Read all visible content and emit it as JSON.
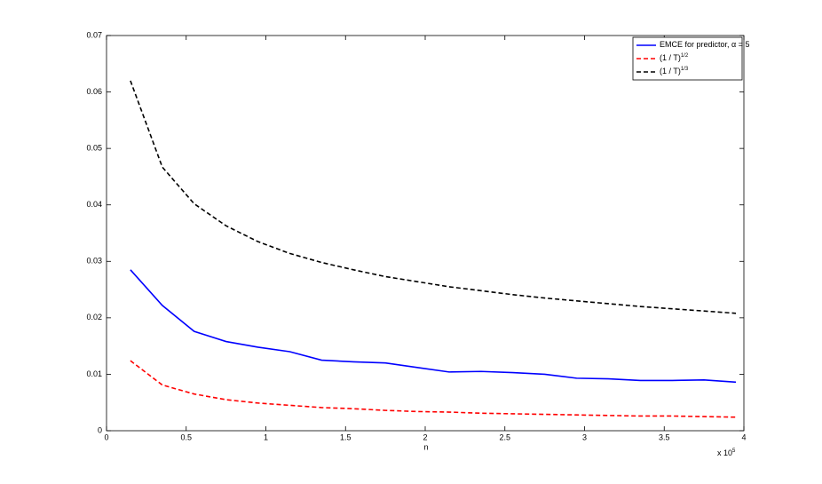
{
  "chart_data": {
    "type": "line",
    "x": [
      0.15,
      0.35,
      0.55,
      0.75,
      0.95,
      1.15,
      1.35,
      1.55,
      1.75,
      1.95,
      2.15,
      2.35,
      2.55,
      2.75,
      2.95,
      3.15,
      3.35,
      3.55,
      3.75,
      3.95
    ],
    "series": [
      {
        "name": "EMCE for predictor, α = 5",
        "color": "#0000ff",
        "dash": false,
        "values": [
          0.0285,
          0.0222,
          0.0176,
          0.0158,
          0.0148,
          0.014,
          0.0125,
          0.0122,
          0.012,
          0.0112,
          0.0104,
          0.0105,
          0.0103,
          0.01,
          0.0093,
          0.0092,
          0.0089,
          0.0089,
          0.009,
          0.0086
        ]
      },
      {
        "name": "(1 / T)",
        "name_superscript": "1/2",
        "color": "#ff0000",
        "dash": true,
        "values": [
          0.0124,
          0.0081,
          0.0065,
          0.0055,
          0.0049,
          0.0045,
          0.0041,
          0.0039,
          0.0036,
          0.0034,
          0.0033,
          0.0031,
          0.003,
          0.0029,
          0.0028,
          0.0027,
          0.0026,
          0.0026,
          0.0025,
          0.0024
        ]
      },
      {
        "name": "(1 / T)",
        "name_superscript": "1/3",
        "color": "#000000",
        "dash": true,
        "values": [
          0.062,
          0.0467,
          0.0402,
          0.0363,
          0.0335,
          0.0314,
          0.0298,
          0.0285,
          0.0273,
          0.0264,
          0.0255,
          0.0248,
          0.0241,
          0.0235,
          0.023,
          0.0225,
          0.022,
          0.0216,
          0.0212,
          0.0208
        ]
      }
    ],
    "x_label": "n",
    "x_multiplier": "x 10",
    "x_multiplier_exponent": "5",
    "xlim": [
      0,
      4
    ],
    "xticks": [
      0,
      0.5,
      1,
      1.5,
      2,
      2.5,
      3,
      3.5,
      4
    ],
    "ylim": [
      0,
      0.07
    ],
    "yticks": [
      0,
      0.01,
      0.02,
      0.03,
      0.04,
      0.05,
      0.06,
      0.07
    ],
    "legend": "upper right"
  }
}
